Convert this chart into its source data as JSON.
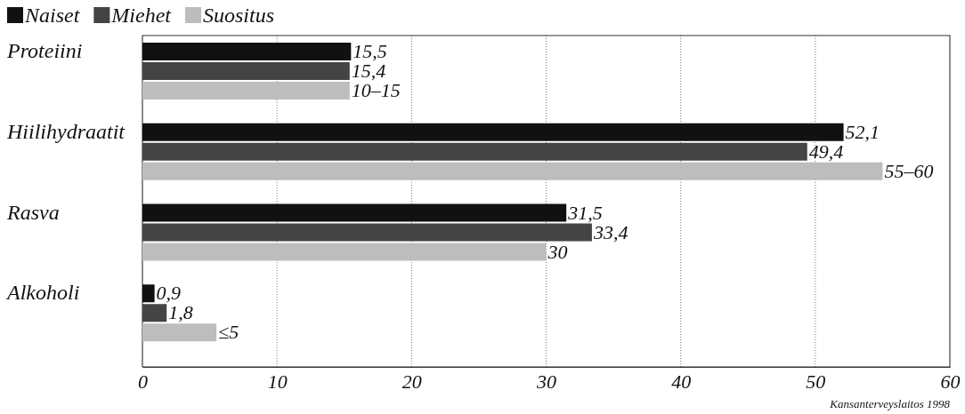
{
  "chart_data": {
    "type": "bar",
    "orientation": "horizontal",
    "categories": [
      "Proteiini",
      "Hiilihydraatit",
      "Rasva",
      "Alkoholi"
    ],
    "series": [
      {
        "name": "Naiset",
        "color": "#111111",
        "values": [
          15.5,
          52.1,
          31.5,
          0.9
        ],
        "value_labels": [
          "15,5",
          "52,1",
          "31,5",
          "0,9"
        ]
      },
      {
        "name": "Miehet",
        "color": "#444444",
        "values": [
          15.4,
          49.4,
          33.4,
          1.8
        ],
        "value_labels": [
          "15,4",
          "49,4",
          "33,4",
          "1,8"
        ]
      },
      {
        "name": "Suositus",
        "color": "#bdbdbd",
        "values": [
          15.4,
          55.0,
          30,
          5.5
        ],
        "value_labels": [
          "10–15",
          "55–60",
          "30",
          "≤5"
        ]
      }
    ],
    "xlim": [
      0,
      60
    ],
    "xticks": [
      0,
      10,
      20,
      30,
      40,
      50,
      60
    ],
    "grid": "x",
    "legend": "top left",
    "annotations": [
      "Kansanterveyslaitos 1998"
    ]
  }
}
